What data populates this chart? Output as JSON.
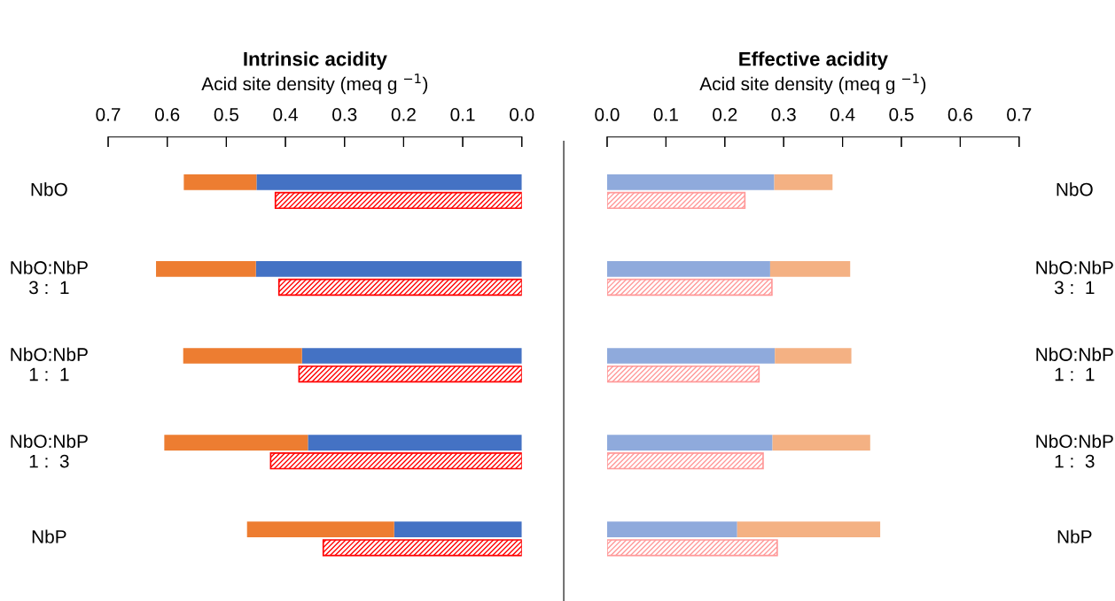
{
  "chart_data": [
    {
      "type": "bar",
      "orientation": "horizontal",
      "stacked": true,
      "title": "Intrinsic acidity",
      "xlabel": "Acid site density (meq g $^{−1}$)",
      "categories": [
        "NbO",
        "NbO:NbP\n3 :  1",
        "NbO:NbP\n1 :  1",
        "NbO:NbP\n1 :  3",
        "NbP"
      ],
      "series": [
        {
          "color": "#4472c4",
          "values": [
            0.449,
            0.45,
            0.372,
            0.362,
            0.216
          ]
        },
        {
          "color": "#ed7d31",
          "values": [
            0.123,
            0.169,
            0.201,
            0.243,
            0.249
          ]
        }
      ],
      "xlim": [
        0.7,
        0
      ],
      "xticks": [
        0.7,
        0.6,
        0.5,
        0.4,
        0.3,
        0.2,
        0.1,
        {
          "value": 0,
          "label": "0.0"
        }
      ]
    },
    {
      "type": "bar",
      "orientation": "horizontal",
      "stacked": true,
      "title": "Effective acidity",
      "xlabel": "Acid site density (meq g $^{−1}$)",
      "categories": [
        "NbO",
        "NbO:NbP\n3 :  1",
        "NbO:NbP\n1 :  1",
        "NbO:NbP\n1 :  3",
        "NbP"
      ],
      "series": [
        {
          "color": "#8faadc",
          "values": [
            0.284,
            0.277,
            0.285,
            0.281,
            0.221
          ]
        },
        {
          "color": "#f4b183",
          "values": [
            0.099,
            0.136,
            0.13,
            0.166,
            0.243
          ]
        }
      ],
      "xlim": [
        0,
        0.7
      ],
      "xticks": [
        {
          "value": 0,
          "label": "0.0"
        },
        0.1,
        0.2,
        0.3,
        0.4,
        0.5,
        0.6,
        0.7
      ]
    },
    {
      "type": "bar",
      "orientation": "horizontal",
      "tick_labels": false,
      "categories": [
        null,
        null,
        null,
        null,
        null
      ],
      "series": [
        {
          "color": "#ff0000",
          "values": [
            0.417,
            0.411,
            0.377,
            0.425,
            0.336
          ]
        }
      ],
      "xlim": [
        0.7,
        0
      ],
      "xticks": [
        {
          "value": 0.7,
          "label": null
        },
        {
          "value": 0.6,
          "label": null
        },
        {
          "value": 0.5,
          "label": null
        },
        {
          "value": 0.4,
          "label": null
        },
        {
          "value": 0.3,
          "label": null
        },
        {
          "value": 0.2,
          "label": null
        },
        {
          "value": 0.1,
          "label": null
        },
        {
          "value": 0,
          "label": null
        }
      ]
    },
    {
      "type": "bar",
      "orientation": "horizontal",
      "tick_labels": false,
      "categories": [
        null,
        null,
        null,
        null,
        null
      ],
      "series": [
        {
          "color": "#ff9999",
          "values": [
            0.234,
            0.28,
            0.258,
            0.265,
            0.289
          ]
        }
      ],
      "xlim": [
        0,
        0.7
      ],
      "xticks": [
        {
          "value": 0,
          "label": null
        },
        {
          "value": 0.1,
          "label": null
        },
        {
          "value": 0.2,
          "label": null
        },
        {
          "value": 0.3,
          "label": null
        },
        {
          "value": 0.4,
          "label": null
        },
        {
          "value": 0.5,
          "label": null
        },
        {
          "value": 0.6,
          "label": null
        },
        {
          "value": 0.7,
          "label": null
        }
      ]
    }
  ]
}
